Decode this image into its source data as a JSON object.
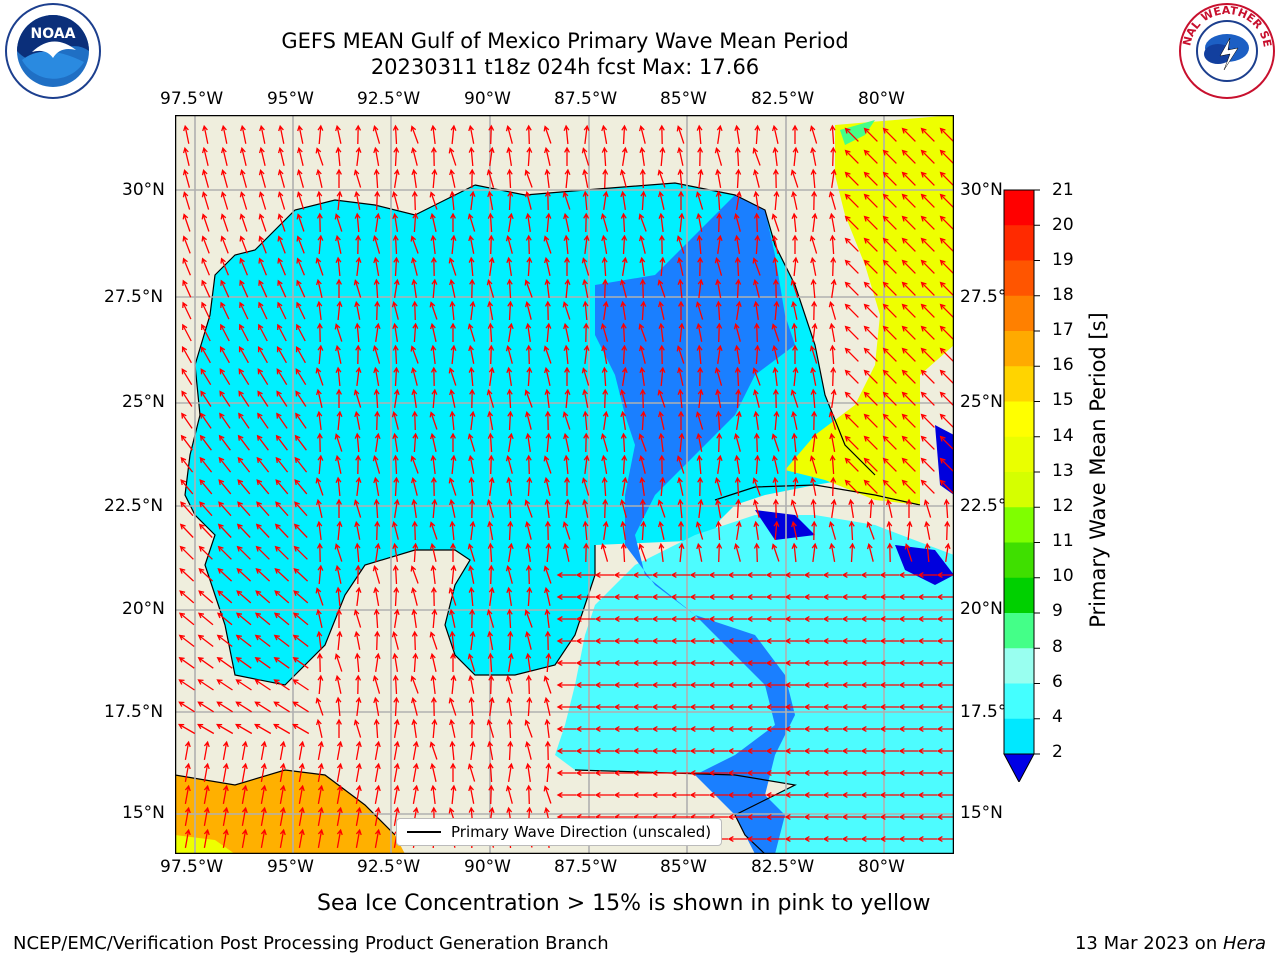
{
  "header": {
    "title_line1": "GEFS MEAN Gulf of Mexico Primary Wave Mean Period",
    "title_line2": "20230311 t18z 024h fcst   Max: 17.66"
  },
  "logos": {
    "left": "NOAA",
    "right": "NATIONAL WEATHER SERVICE"
  },
  "axes": {
    "lon_labels": [
      "97.5°W",
      "95°W",
      "92.5°W",
      "90°W",
      "87.5°W",
      "85°W",
      "82.5°W",
      "80°W"
    ],
    "lat_labels_left": [
      "30°N",
      "27.5°N",
      "25°N",
      "22.5°N",
      "20°N",
      "17.5°N",
      "15°N"
    ],
    "lat_labels_right": [
      "30°N",
      "27.5°",
      "25°N",
      "22.5°",
      "20°N",
      "17.5°",
      "15°N"
    ]
  },
  "legend": {
    "label": "Primary Wave Direction (unscaled)"
  },
  "colorbar": {
    "label": "Primary Wave Mean Period [s]",
    "ticks": [
      "21",
      "20",
      "19",
      "18",
      "17",
      "16",
      "15",
      "14",
      "13",
      "12",
      "11",
      "10",
      "9",
      "8",
      "6",
      "4",
      "2"
    ],
    "colors": [
      "#ff0000",
      "#ff2a00",
      "#ff5500",
      "#ff8000",
      "#ffaa00",
      "#ffd400",
      "#ffff00",
      "#eaff00",
      "#d5ff00",
      "#7fff00",
      "#3fdf00",
      "#00d000",
      "#44ff88",
      "#99fff0",
      "#44ffff",
      "#00e8ff",
      "#0077ff"
    ],
    "extend_color": "#0000e6"
  },
  "map_colors": {
    "land": "#efeedd",
    "cyan": "#00f0ff",
    "light_cyan": "#4dfcff",
    "blue": "#1a7fff",
    "dark_blue": "#0000dd",
    "yellow": "#eeff00",
    "orange": "#ffb000"
  },
  "footer": {
    "note": "Sea Ice Concentration > 15% is shown in pink to yellow",
    "left": "NCEP/EMC/Verification Post Processing Product Generation Branch",
    "date": "13 Mar 2023 on ",
    "host": "Hera"
  }
}
